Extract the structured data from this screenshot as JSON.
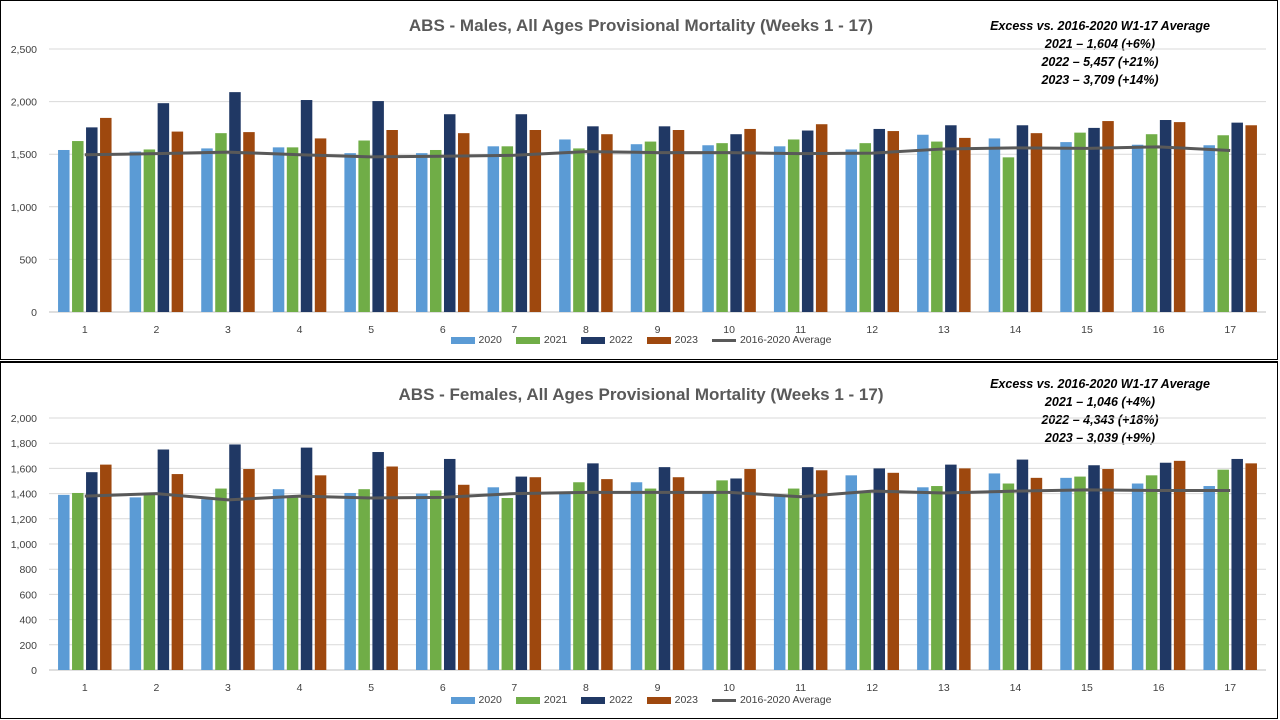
{
  "colors": {
    "2020": "#5b9bd5",
    "2021": "#70ad47",
    "2022": "#203864",
    "2023": "#9e480e",
    "avg": "#595959"
  },
  "chart_data": [
    {
      "type": "bar",
      "title": "ABS - Males, All Ages Provisional Mortality (Weeks 1 - 17)",
      "categories": [
        "1",
        "2",
        "3",
        "4",
        "5",
        "6",
        "7",
        "8",
        "9",
        "10",
        "11",
        "12",
        "13",
        "14",
        "15",
        "16",
        "17"
      ],
      "ylim": [
        0,
        2500
      ],
      "yticks": [
        "0",
        "500",
        "1,000",
        "1,500",
        "2,000",
        "2,500"
      ],
      "ytick_values": [
        0,
        500,
        1000,
        1500,
        2000,
        2500
      ],
      "grid": true,
      "legend_position": "bottom",
      "annotation": [
        "Excess vs. 2016-2020  W1-17 Average",
        "2021 –  1,604  (+6%)",
        "2022 –  5,457  (+21%)",
        "2023 – 3,709  (+14%)"
      ],
      "series": [
        {
          "name": "2020",
          "values": [
            1540,
            1525,
            1555,
            1565,
            1510,
            1510,
            1575,
            1640,
            1595,
            1585,
            1575,
            1545,
            1685,
            1650,
            1615,
            1590,
            1585
          ]
        },
        {
          "name": "2021",
          "values": [
            1625,
            1545,
            1700,
            1565,
            1630,
            1540,
            1575,
            1555,
            1620,
            1605,
            1640,
            1605,
            1620,
            1470,
            1705,
            1690,
            1680
          ]
        },
        {
          "name": "2022",
          "values": [
            1755,
            1985,
            2090,
            2015,
            2005,
            1880,
            1880,
            1765,
            1765,
            1690,
            1725,
            1740,
            1775,
            1775,
            1750,
            1825,
            1800
          ]
        },
        {
          "name": "2023",
          "values": [
            1845,
            1715,
            1710,
            1650,
            1730,
            1700,
            1730,
            1690,
            1730,
            1740,
            1785,
            1720,
            1655,
            1700,
            1815,
            1805,
            1775
          ]
        }
      ],
      "line": {
        "name": "2016-2020 Average",
        "values": [
          1495,
          1505,
          1520,
          1495,
          1475,
          1480,
          1490,
          1525,
          1515,
          1515,
          1505,
          1510,
          1550,
          1560,
          1555,
          1570,
          1535
        ]
      }
    },
    {
      "type": "bar",
      "title": "ABS - Females, All Ages Provisional Mortality (Weeks 1 - 17)",
      "categories": [
        "1",
        "2",
        "3",
        "4",
        "5",
        "6",
        "7",
        "8",
        "9",
        "10",
        "11",
        "12",
        "13",
        "14",
        "15",
        "16",
        "17"
      ],
      "ylim": [
        0,
        2000
      ],
      "yticks": [
        "0",
        "200",
        "400",
        "600",
        "800",
        "1,000",
        "1,200",
        "1,400",
        "1,600",
        "1,800",
        "2,000"
      ],
      "ytick_values": [
        0,
        200,
        400,
        600,
        800,
        1000,
        1200,
        1400,
        1600,
        1800,
        2000
      ],
      "grid": true,
      "legend_position": "bottom",
      "annotation": [
        "Excess vs. 2016-2020  W1-17 Average",
        "2021 –  1,046  (+4%)",
        "2022 –  4,343  (+18%)",
        "2023 – 3,039  (+9%)"
      ],
      "series": [
        {
          "name": "2020",
          "values": [
            1390,
            1370,
            1355,
            1435,
            1405,
            1400,
            1450,
            1410,
            1490,
            1415,
            1385,
            1545,
            1450,
            1560,
            1525,
            1480,
            1460
          ]
        },
        {
          "name": "2021",
          "values": [
            1405,
            1400,
            1440,
            1375,
            1435,
            1425,
            1365,
            1490,
            1440,
            1505,
            1440,
            1415,
            1460,
            1480,
            1535,
            1545,
            1590
          ]
        },
        {
          "name": "2022",
          "values": [
            1570,
            1750,
            1790,
            1765,
            1730,
            1675,
            1535,
            1640,
            1610,
            1520,
            1610,
            1600,
            1630,
            1670,
            1625,
            1645,
            1675
          ]
        },
        {
          "name": "2023",
          "values": [
            1630,
            1555,
            1595,
            1545,
            1615,
            1470,
            1530,
            1515,
            1530,
            1595,
            1585,
            1565,
            1600,
            1525,
            1595,
            1660,
            1640
          ]
        }
      ],
      "line": {
        "name": "2016-2020 Average",
        "values": [
          1380,
          1400,
          1350,
          1380,
          1365,
          1370,
          1400,
          1410,
          1410,
          1410,
          1375,
          1420,
          1405,
          1420,
          1430,
          1425,
          1425
        ]
      }
    }
  ]
}
